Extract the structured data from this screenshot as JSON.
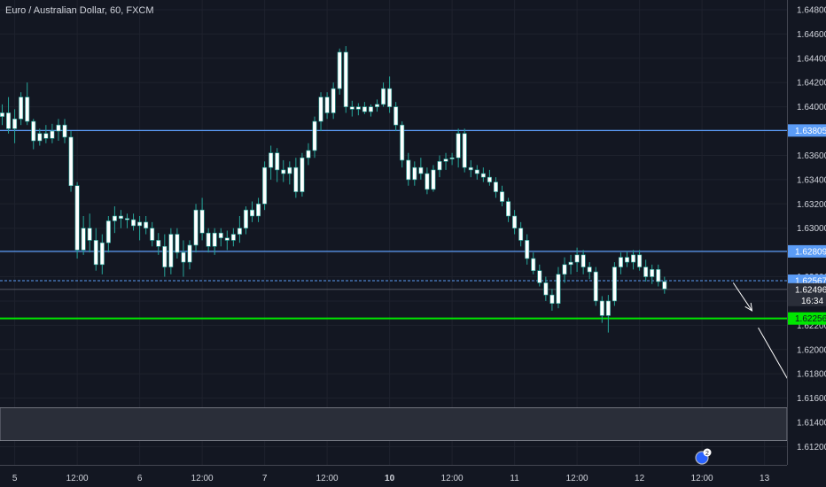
{
  "chart_data": {
    "type": "candlestick",
    "title": "Euro / Australian Dollar, 60, FXCM",
    "ylim": [
      1.6105,
      1.6488
    ],
    "y_ticks": [
      "1.64800",
      "1.64600",
      "1.64400",
      "1.64200",
      "1.64000",
      "1.63800",
      "1.63600",
      "1.63400",
      "1.63200",
      "1.63000",
      "1.62800",
      "1.62600",
      "1.62400",
      "1.62200",
      "1.62000",
      "1.61800",
      "1.61600",
      "1.61400",
      "1.61200"
    ],
    "x_ticks": [
      {
        "label": "5",
        "bar": 2
      },
      {
        "label": "12:00",
        "bar": 12
      },
      {
        "label": "6",
        "bar": 22
      },
      {
        "label": "12:00",
        "bar": 32
      },
      {
        "label": "7",
        "bar": 42
      },
      {
        "label": "12:00",
        "bar": 52
      },
      {
        "label": "10",
        "bar": 62,
        "bold": true
      },
      {
        "label": "12:00",
        "bar": 72
      },
      {
        "label": "11",
        "bar": 82
      },
      {
        "label": "12:00",
        "bar": 92
      },
      {
        "label": "12",
        "bar": 102
      },
      {
        "label": "12:00",
        "bar": 112
      },
      {
        "label": "13",
        "bar": 122
      }
    ],
    "levels": [
      {
        "value": 1.63805,
        "label": "1.63805",
        "color": "#5b9cf6",
        "style": "solid"
      },
      {
        "value": 1.62809,
        "label": "1.62809",
        "color": "#5b9cf6",
        "style": "solid"
      },
      {
        "value": 1.62567,
        "label": "1.62567",
        "color": "#5b9cf6",
        "style": "dashed"
      },
      {
        "value": 1.62256,
        "label": "1.62256",
        "color": "#00e600",
        "style": "solid"
      }
    ],
    "current_price": {
      "value": 1.62496,
      "label": "1.62496",
      "countdown": "16:34"
    },
    "zone": {
      "from": 1.6125,
      "to": 1.6152
    },
    "ohlc": [
      [
        1.6392,
        1.6402,
        1.6385,
        1.6395
      ],
      [
        1.6395,
        1.6408,
        1.6378,
        1.6382
      ],
      [
        1.6382,
        1.6398,
        1.637,
        1.639
      ],
      [
        1.639,
        1.6412,
        1.6385,
        1.6408
      ],
      [
        1.6408,
        1.642,
        1.6385,
        1.6388
      ],
      [
        1.6388,
        1.639,
        1.6365,
        1.6372
      ],
      [
        1.6372,
        1.6382,
        1.6368,
        1.6378
      ],
      [
        1.6378,
        1.6385,
        1.637,
        1.6374
      ],
      [
        1.6374,
        1.6386,
        1.637,
        1.638
      ],
      [
        1.638,
        1.639,
        1.6372,
        1.6385
      ],
      [
        1.6385,
        1.639,
        1.637,
        1.6375
      ],
      [
        1.6375,
        1.638,
        1.633,
        1.6335
      ],
      [
        1.6335,
        1.6338,
        1.6275,
        1.6282
      ],
      [
        1.6282,
        1.631,
        1.6278,
        1.63
      ],
      [
        1.63,
        1.6312,
        1.628,
        1.629
      ],
      [
        1.629,
        1.63,
        1.6265,
        1.627
      ],
      [
        1.627,
        1.6295,
        1.6262,
        1.6288
      ],
      [
        1.6288,
        1.631,
        1.628,
        1.6306
      ],
      [
        1.6306,
        1.6318,
        1.6296,
        1.631
      ],
      [
        1.631,
        1.6315,
        1.63,
        1.6308
      ],
      [
        1.6308,
        1.6312,
        1.63,
        1.6307
      ],
      [
        1.6307,
        1.6312,
        1.6298,
        1.6302
      ],
      [
        1.6302,
        1.631,
        1.629,
        1.6305
      ],
      [
        1.6305,
        1.631,
        1.6295,
        1.63
      ],
      [
        1.63,
        1.6305,
        1.6285,
        1.629
      ],
      [
        1.629,
        1.6296,
        1.6278,
        1.6285
      ],
      [
        1.6285,
        1.6295,
        1.626,
        1.6268
      ],
      [
        1.6268,
        1.63,
        1.6262,
        1.6295
      ],
      [
        1.6295,
        1.63,
        1.6275,
        1.628
      ],
      [
        1.628,
        1.629,
        1.626,
        1.6272
      ],
      [
        1.6272,
        1.629,
        1.6266,
        1.6286
      ],
      [
        1.6286,
        1.632,
        1.628,
        1.6315
      ],
      [
        1.6315,
        1.6325,
        1.629,
        1.6296
      ],
      [
        1.6296,
        1.63,
        1.628,
        1.6285
      ],
      [
        1.6285,
        1.63,
        1.6278,
        1.6296
      ],
      [
        1.6296,
        1.63,
        1.6285,
        1.6292
      ],
      [
        1.6292,
        1.6298,
        1.6282,
        1.629
      ],
      [
        1.629,
        1.63,
        1.6285,
        1.6295
      ],
      [
        1.6295,
        1.631,
        1.6288,
        1.63
      ],
      [
        1.63,
        1.6318,
        1.6295,
        1.6315
      ],
      [
        1.6315,
        1.6322,
        1.6305,
        1.631
      ],
      [
        1.631,
        1.6325,
        1.6305,
        1.632
      ],
      [
        1.632,
        1.6355,
        1.6315,
        1.635
      ],
      [
        1.635,
        1.6368,
        1.634,
        1.6362
      ],
      [
        1.6362,
        1.6366,
        1.6338,
        1.6348
      ],
      [
        1.6348,
        1.6356,
        1.6338,
        1.6345
      ],
      [
        1.6345,
        1.6355,
        1.6336,
        1.635
      ],
      [
        1.635,
        1.6358,
        1.6325,
        1.633
      ],
      [
        1.633,
        1.6362,
        1.6326,
        1.6358
      ],
      [
        1.6358,
        1.637,
        1.6352,
        1.6364
      ],
      [
        1.6364,
        1.6392,
        1.6358,
        1.6388
      ],
      [
        1.6388,
        1.6412,
        1.638,
        1.6408
      ],
      [
        1.6408,
        1.6412,
        1.639,
        1.6395
      ],
      [
        1.6395,
        1.642,
        1.639,
        1.6415
      ],
      [
        1.6415,
        1.6448,
        1.641,
        1.6445
      ],
      [
        1.6445,
        1.645,
        1.6395,
        1.64
      ],
      [
        1.64,
        1.6405,
        1.6392,
        1.6398
      ],
      [
        1.6398,
        1.6403,
        1.6393,
        1.64
      ],
      [
        1.64,
        1.6404,
        1.6394,
        1.6396
      ],
      [
        1.6396,
        1.6402,
        1.6392,
        1.64
      ],
      [
        1.64,
        1.6406,
        1.6396,
        1.6402
      ],
      [
        1.6402,
        1.642,
        1.64,
        1.6415
      ],
      [
        1.6415,
        1.6425,
        1.6395,
        1.64
      ],
      [
        1.64,
        1.6404,
        1.638,
        1.6385
      ],
      [
        1.6385,
        1.6388,
        1.635,
        1.6356
      ],
      [
        1.6356,
        1.6362,
        1.6335,
        1.634
      ],
      [
        1.634,
        1.6355,
        1.6335,
        1.635
      ],
      [
        1.635,
        1.6358,
        1.634,
        1.6345
      ],
      [
        1.6345,
        1.635,
        1.6328,
        1.6332
      ],
      [
        1.6332,
        1.6352,
        1.633,
        1.6348
      ],
      [
        1.6348,
        1.636,
        1.6342,
        1.6355
      ],
      [
        1.6355,
        1.6362,
        1.6348,
        1.6357
      ],
      [
        1.6357,
        1.6362,
        1.6352,
        1.6358
      ],
      [
        1.6358,
        1.6382,
        1.635,
        1.6378
      ],
      [
        1.6378,
        1.6382,
        1.6346,
        1.635
      ],
      [
        1.635,
        1.6356,
        1.6342,
        1.6348
      ],
      [
        1.6348,
        1.6352,
        1.634,
        1.6345
      ],
      [
        1.6345,
        1.635,
        1.6338,
        1.6342
      ],
      [
        1.6342,
        1.6348,
        1.6335,
        1.6338
      ],
      [
        1.6338,
        1.6342,
        1.6325,
        1.633
      ],
      [
        1.633,
        1.6335,
        1.6318,
        1.6322
      ],
      [
        1.6322,
        1.6325,
        1.6305,
        1.631
      ],
      [
        1.631,
        1.6315,
        1.6295,
        1.63
      ],
      [
        1.63,
        1.6305,
        1.6285,
        1.629
      ],
      [
        1.629,
        1.6295,
        1.627,
        1.6275
      ],
      [
        1.6275,
        1.628,
        1.6262,
        1.6265
      ],
      [
        1.6265,
        1.627,
        1.6252,
        1.6255
      ],
      [
        1.6255,
        1.626,
        1.624,
        1.6245
      ],
      [
        1.6245,
        1.625,
        1.6232,
        1.6238
      ],
      [
        1.6238,
        1.6268,
        1.6234,
        1.6262
      ],
      [
        1.6262,
        1.6276,
        1.6255,
        1.627
      ],
      [
        1.627,
        1.6278,
        1.6262,
        1.6272
      ],
      [
        1.6272,
        1.6284,
        1.6264,
        1.6278
      ],
      [
        1.6278,
        1.6282,
        1.6262,
        1.6268
      ],
      [
        1.6268,
        1.6272,
        1.6258,
        1.6264
      ],
      [
        1.6264,
        1.6268,
        1.6236,
        1.624
      ],
      [
        1.624,
        1.6244,
        1.6222,
        1.6228
      ],
      [
        1.6228,
        1.6245,
        1.6214,
        1.624
      ],
      [
        1.624,
        1.6272,
        1.6236,
        1.6268
      ],
      [
        1.6268,
        1.628,
        1.6262,
        1.6276
      ],
      [
        1.6276,
        1.6281,
        1.6268,
        1.6272
      ],
      [
        1.6272,
        1.6282,
        1.6266,
        1.6278
      ],
      [
        1.6278,
        1.6282,
        1.6265,
        1.6268
      ],
      [
        1.6268,
        1.6274,
        1.6256,
        1.626
      ],
      [
        1.626,
        1.627,
        1.6254,
        1.6266
      ],
      [
        1.6266,
        1.627,
        1.6252,
        1.6256
      ],
      [
        1.6256,
        1.626,
        1.6246,
        1.625
      ]
    ],
    "arrows": [
      {
        "from": [
          117,
          1.6255
        ],
        "to": [
          120,
          1.6232
        ]
      },
      {
        "from": [
          121,
          1.6218
        ],
        "to": [
          127,
          1.6164
        ]
      }
    ],
    "colors": {
      "background": "#131722",
      "up": "#ffffff",
      "down": "#ffffff",
      "wick": "#26a69a",
      "grid": "#1e222d",
      "axis_text": "#d1d4dc",
      "zone": "#2a2e39"
    },
    "badge": "2"
  }
}
